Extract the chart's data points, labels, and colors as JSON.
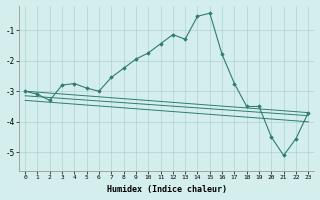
{
  "title": "",
  "xlabel": "Humidex (Indice chaleur)",
  "background_color": "#d4eeee",
  "line_color": "#2e7d6e",
  "xlim": [
    -0.5,
    23.5
  ],
  "ylim": [
    -5.6,
    -0.2
  ],
  "yticks": [
    -5,
    -4,
    -3,
    -2,
    -1
  ],
  "xticks": [
    0,
    1,
    2,
    3,
    4,
    5,
    6,
    7,
    8,
    9,
    10,
    11,
    12,
    13,
    14,
    15,
    16,
    17,
    18,
    19,
    20,
    21,
    22,
    23
  ],
  "series": [
    [
      [
        0,
        -3.0
      ],
      [
        1,
        -3.1
      ],
      [
        2,
        -3.3
      ],
      [
        3,
        -2.8
      ],
      [
        4,
        -2.75
      ],
      [
        5,
        -2.9
      ],
      [
        6,
        -3.0
      ],
      [
        7,
        -2.55
      ],
      [
        8,
        -2.25
      ],
      [
        9,
        -1.95
      ],
      [
        10,
        -1.75
      ],
      [
        11,
        -1.45
      ],
      [
        12,
        -1.15
      ],
      [
        13,
        -1.3
      ],
      [
        14,
        -0.55
      ],
      [
        15,
        -0.45
      ],
      [
        16,
        -1.8
      ],
      [
        17,
        -2.75
      ],
      [
        18,
        -3.5
      ],
      [
        19,
        -3.5
      ],
      [
        20,
        -4.5
      ],
      [
        21,
        -5.1
      ],
      [
        22,
        -4.55
      ],
      [
        23,
        -3.7
      ]
    ],
    [
      [
        0,
        -3.0
      ],
      [
        23,
        -3.7
      ]
    ],
    [
      [
        0,
        -3.15
      ],
      [
        23,
        -3.8
      ]
    ],
    [
      [
        0,
        -3.3
      ],
      [
        23,
        -4.0
      ]
    ]
  ]
}
